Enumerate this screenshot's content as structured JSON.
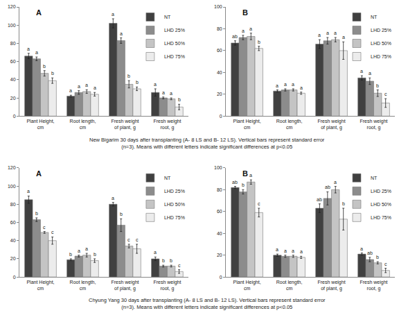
{
  "captions": [
    [
      "New Bigarim 30 days after transplanting (A- 8 LS and B- 12 LS). Vertical bars represent standard error",
      "(n=3). Means with different letters indicate significant differences at p<0.05"
    ],
    [
      "Chyung Yang 30 days after transplanting (A- 8 LS and B- 12 LS). Vertical bars represent standard error",
      "(n=3). Means with different letters indicate significant differences at p<0.05"
    ]
  ],
  "chart_data": [
    {
      "type": "bar",
      "title": "A",
      "categories": [
        "Plant Height, cm",
        "Root length, cm",
        "Fresh weight of plant, g",
        "Fresh weight root, g"
      ],
      "series": [
        {
          "name": "NT",
          "color": "#404040",
          "values": [
            66,
            22,
            102,
            26
          ],
          "errors": [
            3,
            1,
            5,
            4
          ],
          "letters": [
            "a",
            "a",
            "a",
            "a"
          ]
        },
        {
          "name": "LHD 25%",
          "color": "#8c8c8c",
          "values": [
            63,
            26,
            83,
            20
          ],
          "errors": [
            2,
            2,
            3,
            1
          ],
          "letters": [
            "a",
            "a",
            "a",
            "a"
          ]
        },
        {
          "name": "LHD 50%",
          "color": "#c4c4c4",
          "values": [
            47,
            27,
            35,
            19
          ],
          "errors": [
            3,
            2,
            4,
            1
          ],
          "letters": [
            "b",
            "a",
            "b",
            "a"
          ]
        },
        {
          "name": "LHD 75%",
          "color": "#ececec",
          "values": [
            39,
            24,
            30,
            10
          ],
          "errors": [
            3,
            2,
            2,
            3
          ],
          "letters": [
            "b",
            "a",
            "b",
            "b"
          ]
        }
      ],
      "ylim": [
        0,
        120
      ],
      "yticks": [
        0,
        20,
        40,
        60,
        80,
        100,
        120
      ],
      "grid": false,
      "legend": "top right"
    },
    {
      "type": "bar",
      "title": "B",
      "categories": [
        "Plant Height, cm",
        "Root length, cm",
        "Fresh weight of plant, g",
        "Fresh weight root, g"
      ],
      "series": [
        {
          "name": "NT",
          "color": "#404040",
          "values": [
            67,
            23,
            66,
            35
          ],
          "errors": [
            2,
            1,
            4,
            2
          ],
          "letters": [
            "ab",
            "a",
            "a",
            "a"
          ]
        },
        {
          "name": "LHD 25%",
          "color": "#8c8c8c",
          "values": [
            72,
            24,
            69,
            32
          ],
          "errors": [
            2,
            1,
            3,
            3
          ],
          "letters": [
            "a",
            "a",
            "a",
            "a"
          ]
        },
        {
          "name": "LHD 50%",
          "color": "#c4c4c4",
          "values": [
            73,
            24,
            70,
            21
          ],
          "errors": [
            3,
            1,
            2,
            3
          ],
          "letters": [
            "a",
            "a",
            "a",
            "b"
          ]
        },
        {
          "name": "LHD 75%",
          "color": "#ececec",
          "values": [
            62,
            21,
            60,
            12
          ],
          "errors": [
            2,
            1,
            8,
            4
          ],
          "letters": [
            "b",
            "a",
            "a",
            "c"
          ]
        }
      ],
      "ylim": [
        0,
        100
      ],
      "yticks": [
        0,
        20,
        40,
        60,
        80,
        100
      ],
      "grid": false,
      "legend": "top right"
    },
    {
      "type": "bar",
      "title": "A",
      "categories": [
        "Plant Height, cm",
        "Root length, cm",
        "Fresh weight of plant, g",
        "Fresh weight root, g"
      ],
      "series": [
        {
          "name": "NT",
          "color": "#404040",
          "values": [
            85,
            19,
            80,
            20
          ],
          "errors": [
            4,
            1,
            2,
            2
          ],
          "letters": [
            "a",
            "b",
            "a",
            "a"
          ]
        },
        {
          "name": "LHD 25%",
          "color": "#8c8c8c",
          "values": [
            63,
            23,
            57,
            12
          ],
          "errors": [
            2,
            1,
            7,
            1
          ],
          "letters": [
            "b",
            "a",
            "b",
            "b"
          ]
        },
        {
          "name": "LHD 50%",
          "color": "#c4c4c4",
          "values": [
            49,
            24,
            34,
            12
          ],
          "errors": [
            1,
            2,
            2,
            1
          ],
          "letters": [
            "c",
            "a",
            "c",
            "b"
          ]
        },
        {
          "name": "LHD 75%",
          "color": "#ececec",
          "values": [
            40,
            18,
            31,
            6
          ],
          "errors": [
            4,
            2,
            5,
            2
          ],
          "letters": [
            "c",
            "b",
            "c",
            "c"
          ]
        }
      ],
      "ylim": [
        0,
        120
      ],
      "yticks": [
        0,
        20,
        40,
        60,
        80,
        100,
        120
      ],
      "grid": false,
      "legend": "top right"
    },
    {
      "type": "bar",
      "title": "B",
      "categories": [
        "Plant Height, cm",
        "Root length, cm",
        "Fresh weight of plant, g",
        "Fresh weight root, g"
      ],
      "series": [
        {
          "name": "NT",
          "color": "#404040",
          "values": [
            82,
            20,
            63,
            21
          ],
          "errors": [
            1,
            1,
            4,
            1
          ],
          "letters": [
            "ab",
            "a",
            "ab",
            "a"
          ]
        },
        {
          "name": "LHD 25%",
          "color": "#8c8c8c",
          "values": [
            78,
            19,
            72,
            16
          ],
          "errors": [
            2,
            1,
            6,
            2
          ],
          "letters": [
            "b",
            "a",
            "ab",
            "ab"
          ]
        },
        {
          "name": "LHD 50%",
          "color": "#c4c4c4",
          "values": [
            87,
            19,
            80,
            13
          ],
          "errors": [
            2,
            1,
            3,
            1
          ],
          "letters": [
            "a",
            "a",
            "a",
            "b"
          ]
        },
        {
          "name": "LHD 75%",
          "color": "#ececec",
          "values": [
            59,
            18,
            53,
            6
          ],
          "errors": [
            4,
            1,
            10,
            2
          ],
          "letters": [
            "c",
            "a",
            "b",
            "c"
          ]
        }
      ],
      "ylim": [
        0,
        100
      ],
      "yticks": [
        0,
        20,
        40,
        60,
        80,
        100
      ],
      "grid": false,
      "legend": "top right"
    }
  ]
}
